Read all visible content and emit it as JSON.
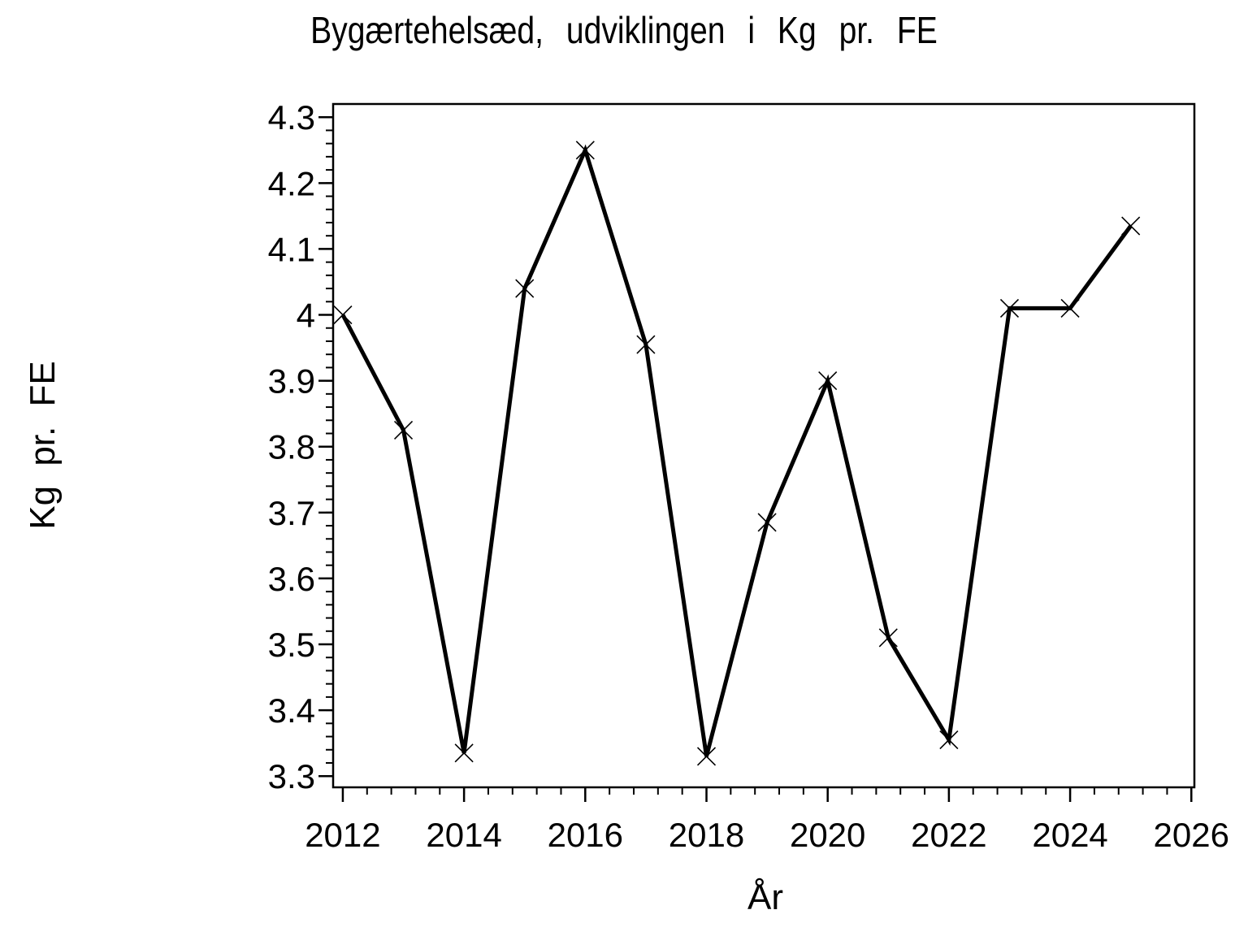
{
  "chart_data": {
    "type": "line",
    "title": "Bygærtehelsæd, udviklingen i Kg pr. FE",
    "xlabel": "År",
    "ylabel": "Kg pr. FE",
    "x": [
      2012,
      2013,
      2014,
      2015,
      2016,
      2017,
      2018,
      2019,
      2020,
      2021,
      2022,
      2023,
      2024,
      2025
    ],
    "values": [
      4.0,
      3.825,
      3.335,
      4.04,
      4.25,
      3.955,
      3.33,
      3.685,
      3.9,
      3.51,
      3.355,
      4.01,
      4.01,
      4.135
    ],
    "xlim": [
      2011.84,
      2026.05
    ],
    "ylim": [
      3.283,
      4.32
    ],
    "x_ticks": [
      2012,
      2014,
      2016,
      2018,
      2020,
      2022,
      2024,
      2026
    ],
    "x_tick_labels": [
      "2012",
      "2014",
      "2016",
      "2018",
      "2020",
      "2022",
      "2024",
      "2026"
    ],
    "y_ticks": [
      3.3,
      3.4,
      3.5,
      3.6,
      3.7,
      3.8,
      3.9,
      4.0,
      4.1,
      4.2,
      4.3
    ],
    "y_tick_labels": [
      "3.3",
      "3.4",
      "3.5",
      "3.6",
      "3.7",
      "3.8",
      "3.9",
      "4",
      "4.1",
      "4.2",
      "4.3"
    ],
    "x_minor_step": 0.4,
    "y_minor_step": 0.02,
    "marker": "x",
    "line_color": "#000000",
    "background_color": "#ffffff",
    "grid": false,
    "legend": false
  }
}
